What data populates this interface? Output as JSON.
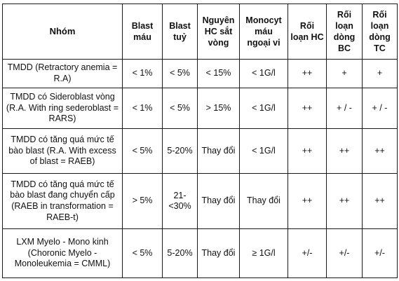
{
  "table": {
    "headers": [
      "Nhóm",
      "Blast máu",
      "Blast tuỷ",
      "Nguyên HC sắt vòng",
      "Monocyt máu ngoại vi",
      "Rối loạn HC",
      "Rối loạn dòng BC",
      "Rối loạn dòng TC"
    ],
    "rows": [
      [
        "TMDD (Retractory anemia = R.A)",
        "< 1%",
        "< 5%",
        "< 15%",
        "< 1G/l",
        "++",
        "+",
        "+"
      ],
      [
        "TMDD có Sideroblast vòng (R.A. With ring sederoblast = RARS)",
        "< 1%",
        "< 5%",
        "> 15%",
        "< 1G/l",
        "++",
        "+ / -",
        "+ / -"
      ],
      [
        "TMDD có tăng quá mức tế bào blast (R.A. With excess of blast = RAEB)",
        "< 5%",
        "5-20%",
        "Thay đổi",
        "< 1G/l",
        "++",
        "++",
        "++"
      ],
      [
        "TMDD có tăng quá mức tế bào blast đang chuyển cấp (RAEB in transformation = RAEB-t)",
        "> 5%",
        "21-<30%",
        "Thay đổi",
        "Thay đổi",
        "++",
        "++",
        "++"
      ],
      [
        "LXM Myelo - Mono kinh (Choronic Myelo - Monoleukemia = CMML)",
        "< 5%",
        "5-20%",
        "Thay đổi",
        "≥ 1G/l",
        "+/-",
        "+/-",
        "+/-"
      ]
    ]
  }
}
